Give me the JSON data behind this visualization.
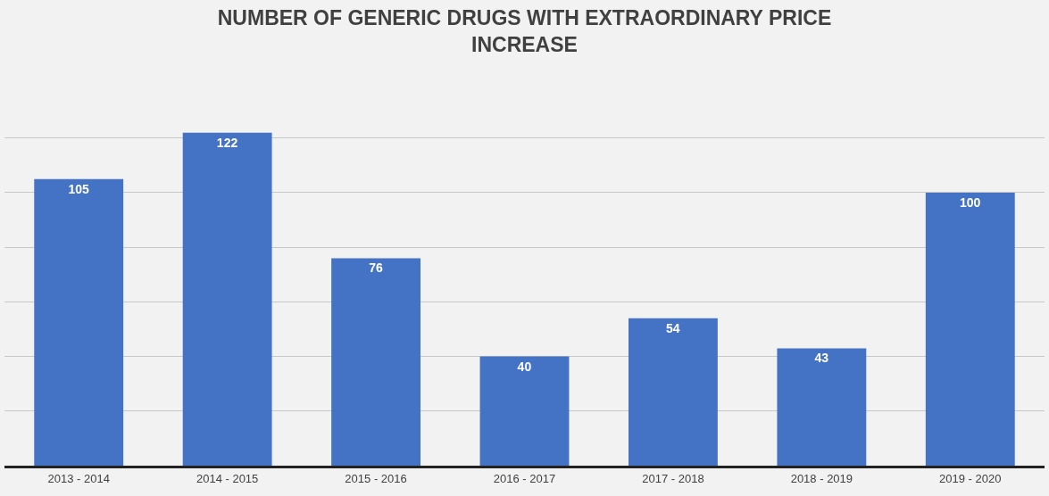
{
  "chart_data": {
    "type": "bar",
    "title": "NUMBER OF GENERIC DRUGS WITH EXTRAORDINARY PRICE\nINCREASE",
    "categories": [
      "2013 - 2014",
      "2014 - 2015",
      "2015 - 2016",
      "2016 - 2017",
      "2017 - 2018",
      "2018 - 2019",
      "2019 - 2020"
    ],
    "values": [
      105,
      122,
      76,
      40,
      54,
      43,
      100
    ],
    "color": "#4472c4",
    "yticks": [
      {
        "value": 0,
        "label": null
      },
      {
        "value": 20,
        "label": null
      },
      {
        "value": 40,
        "label": null
      },
      {
        "value": 60,
        "label": null
      },
      {
        "value": 80,
        "label": null
      },
      {
        "value": 100,
        "label": null
      },
      {
        "value": 120,
        "label": null
      }
    ],
    "grid": "y",
    "tick_labels": "x",
    "data_labels": true,
    "legend": false
  }
}
